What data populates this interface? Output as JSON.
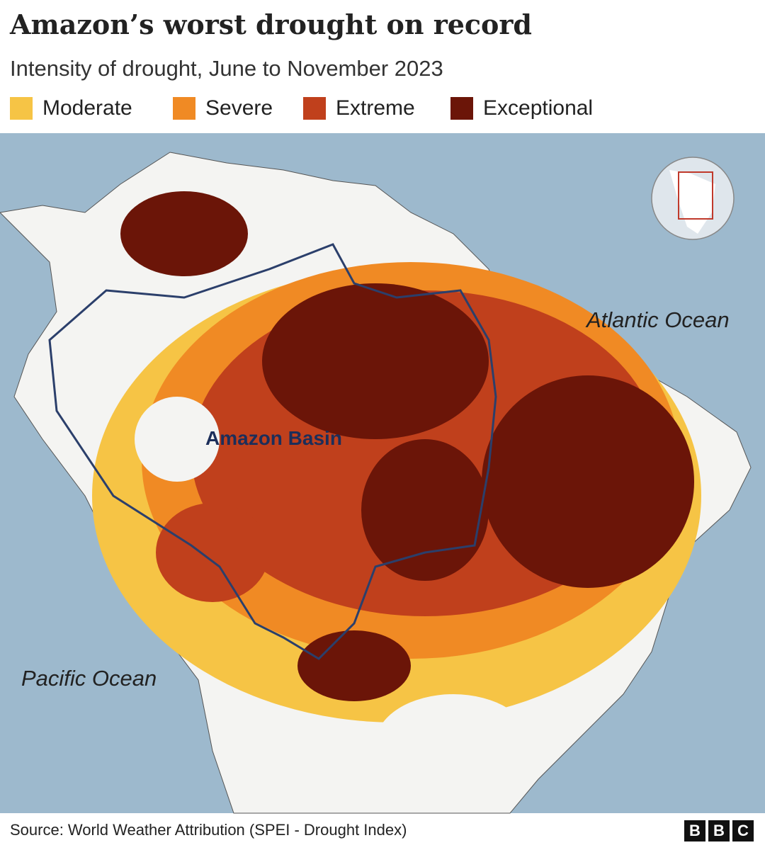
{
  "header": {
    "title": "Amazon’s worst drought on record",
    "subtitle": "Intensity of drought, June to November 2023"
  },
  "legend": [
    {
      "label": "Moderate",
      "color": "#f6c445"
    },
    {
      "label": "Severe",
      "color": "#f08a24"
    },
    {
      "label": "Extreme",
      "color": "#c0401c"
    },
    {
      "label": "Exceptional",
      "color": "#6b1508"
    }
  ],
  "map_labels": {
    "atlantic": "Atlantic Ocean",
    "pacific": "Pacific Ocean",
    "basin": "Amazon Basin"
  },
  "footer": {
    "source": "Source: World Weather Attribution (SPEI - Drought Index)",
    "logo": [
      "B",
      "B",
      "C"
    ]
  }
}
